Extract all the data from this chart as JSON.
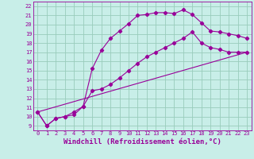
{
  "xlabel": "Windchill (Refroidissement éolien,°C)",
  "bg_color": "#c8eee8",
  "grid_color": "#99ccbb",
  "line_color": "#990099",
  "x_ticks": [
    0,
    1,
    2,
    3,
    4,
    5,
    6,
    7,
    8,
    9,
    10,
    11,
    12,
    13,
    14,
    15,
    16,
    17,
    18,
    19,
    20,
    21,
    22,
    23
  ],
  "y_ticks": [
    9,
    10,
    11,
    12,
    13,
    14,
    15,
    16,
    17,
    18,
    19,
    20,
    21,
    22
  ],
  "ylim": [
    8.5,
    22.5
  ],
  "xlim": [
    -0.5,
    23.5
  ],
  "line1_x": [
    0,
    1,
    2,
    3,
    4,
    5,
    6,
    7,
    8,
    9,
    10,
    11,
    12,
    13,
    14,
    15,
    16,
    17,
    18,
    19,
    20,
    21,
    22,
    23
  ],
  "line1_y": [
    10.5,
    9.0,
    9.8,
    10.0,
    10.2,
    11.1,
    15.2,
    17.2,
    18.5,
    19.3,
    20.1,
    21.0,
    21.1,
    21.3,
    21.3,
    21.2,
    21.6,
    21.1,
    20.2,
    19.3,
    19.2,
    19.0,
    18.8,
    18.5
  ],
  "line2_x": [
    0,
    1,
    2,
    3,
    4,
    5,
    6,
    7,
    8,
    9,
    10,
    11,
    12,
    13,
    14,
    15,
    16,
    17,
    18,
    19,
    20,
    21,
    22,
    23
  ],
  "line2_y": [
    10.5,
    9.0,
    9.8,
    10.0,
    10.5,
    11.1,
    12.8,
    13.0,
    13.5,
    14.2,
    15.0,
    15.8,
    16.5,
    17.0,
    17.5,
    18.0,
    18.5,
    19.2,
    18.0,
    17.5,
    17.3,
    17.0,
    17.0,
    17.0
  ],
  "line3_x": [
    0,
    23
  ],
  "line3_y": [
    10.5,
    17.0
  ],
  "marker": "D",
  "marker_size": 2.2,
  "line_width": 0.8,
  "tick_fontsize": 5.0,
  "xlabel_fontsize": 6.5
}
